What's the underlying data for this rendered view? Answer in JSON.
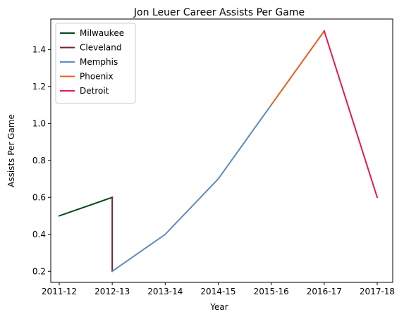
{
  "chart_data": {
    "type": "line",
    "title": "Jon Leuer Career Assists Per Game",
    "xlabel": "Year",
    "ylabel": "Assists Per Game",
    "categories": [
      "2011-12",
      "2012-13",
      "2013-14",
      "2014-15",
      "2015-16",
      "2016-17",
      "2017-18"
    ],
    "ylim": [
      0.14,
      1.565
    ],
    "yticks": [
      0.2,
      0.4,
      0.6,
      0.8,
      1.0,
      1.2,
      1.4
    ],
    "ytick_labels": [
      "0.2",
      "0.4",
      "0.6",
      "0.8",
      "1.0",
      "1.2",
      "1.4"
    ],
    "grid": false,
    "legend_position": "top-left",
    "series": [
      {
        "name": "Milwaukee",
        "color": "#00471b",
        "points": [
          [
            "2011-12",
            0.5
          ],
          [
            "2012-13",
            0.6
          ]
        ]
      },
      {
        "name": "Cleveland",
        "color": "#6f263d",
        "points": [
          [
            "2012-13",
            0.6
          ],
          [
            "2012-13",
            0.2
          ]
        ]
      },
      {
        "name": "Memphis",
        "color": "#5d8cc1",
        "points": [
          [
            "2012-13",
            0.2
          ],
          [
            "2013-14",
            0.4
          ],
          [
            "2014-15",
            0.7
          ],
          [
            "2015-16",
            1.1
          ]
        ]
      },
      {
        "name": "Phoenix",
        "color": "#e56020",
        "points": [
          [
            "2015-16",
            1.1
          ],
          [
            "2016-17",
            1.5
          ]
        ]
      },
      {
        "name": "Detroit",
        "color": "#e31b4f",
        "points": [
          [
            "2016-17",
            1.5
          ],
          [
            "2017-18",
            0.6
          ]
        ]
      }
    ]
  }
}
